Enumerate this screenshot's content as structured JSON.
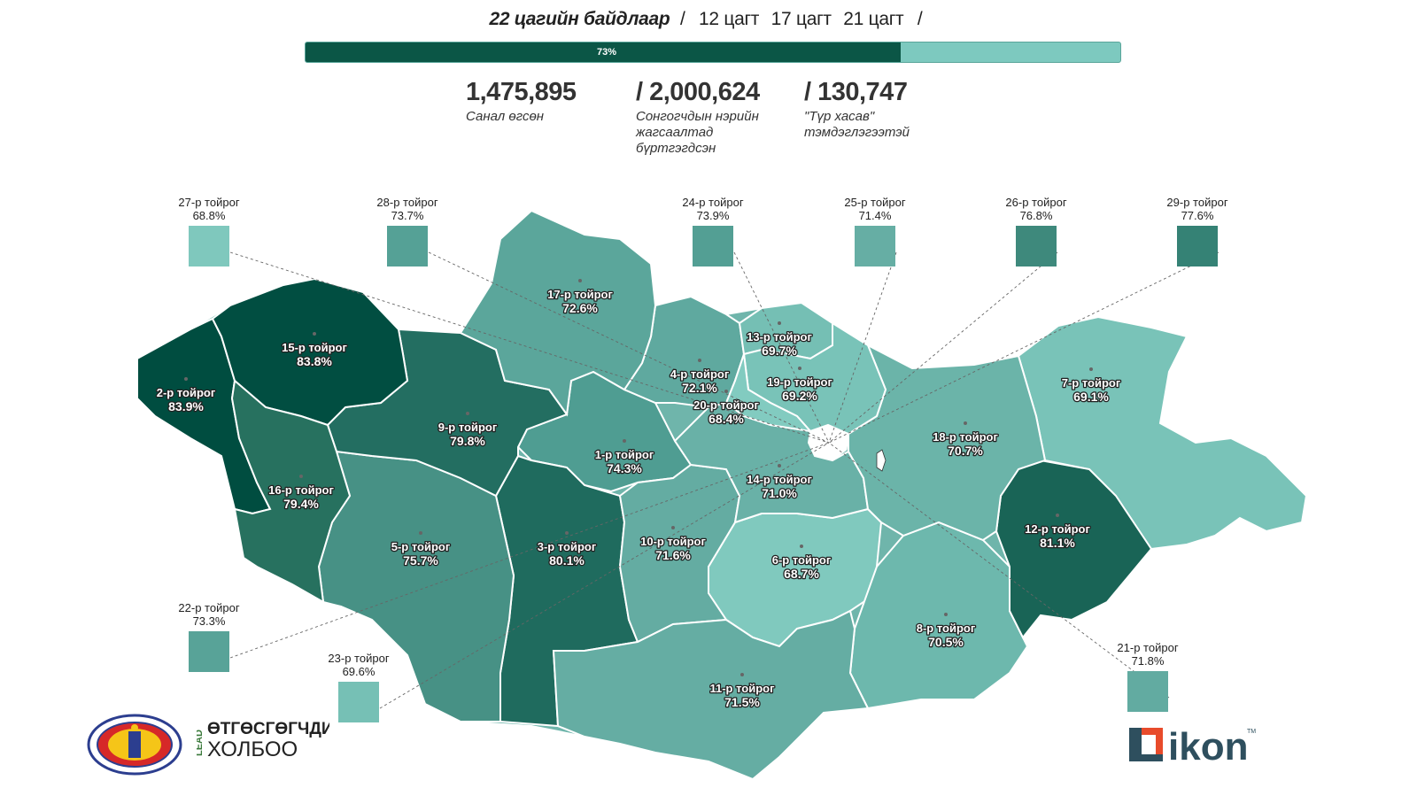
{
  "header": {
    "active_time": "22 цагийн байдлаар",
    "sep1": "/",
    "times": [
      "12 цагт",
      "17 цагт",
      "21 цагт"
    ],
    "sep2": "/"
  },
  "progress": {
    "label": "73%",
    "percent": 73
  },
  "stats": [
    {
      "value": "1,475,895",
      "label": "Санал өгсөн"
    },
    {
      "value": "/ 2,000,624",
      "label": "Сонгогчдын нэрийн жагсаалтад бүртгэгдсэн"
    },
    {
      "value": "/ 130,747",
      "label": "\"Түр хасав\" тэмдэглэгээтэй"
    }
  ],
  "districts": [
    {
      "name": "1-р тойрог",
      "value": "74.3%",
      "color": "#4f9d92"
    },
    {
      "name": "2-р тойрог",
      "value": "83.9%",
      "color": "#004d40"
    },
    {
      "name": "3-р тойрог",
      "value": "80.1%",
      "color": "#1f6b5e"
    },
    {
      "name": "4-р тойрог",
      "value": "72.1%",
      "color": "#5fa99f"
    },
    {
      "name": "5-р тойрог",
      "value": "75.7%",
      "color": "#479185"
    },
    {
      "name": "6-р тойрог",
      "value": "68.7%",
      "color": "#80c9be"
    },
    {
      "name": "7-р тойрог",
      "value": "69.1%",
      "color": "#79c3b8"
    },
    {
      "name": "8-р тойрог",
      "value": "70.5%",
      "color": "#6db8ad"
    },
    {
      "name": "9-р тойрог",
      "value": "79.8%",
      "color": "#236e61"
    },
    {
      "name": "10-р тойрог",
      "value": "71.6%",
      "color": "#64aca2"
    },
    {
      "name": "11-р тойрог",
      "value": "71.5%",
      "color": "#65ada3"
    },
    {
      "name": "12-р тойрог",
      "value": "81.1%",
      "color": "#196456"
    },
    {
      "name": "13-р тойрог",
      "value": "69.7%",
      "color": "#75bfb4"
    },
    {
      "name": "14-р тойрог",
      "value": "71.0%",
      "color": "#69b1a7"
    },
    {
      "name": "15-р тойрог",
      "value": "83.8%",
      "color": "#014e41"
    },
    {
      "name": "16-р тойрог",
      "value": "79.4%",
      "color": "#27715f"
    },
    {
      "name": "17-р тойрог",
      "value": "72.6%",
      "color": "#5ba69b"
    },
    {
      "name": "18-р тойрог",
      "value": "70.7%",
      "color": "#6bb4a9"
    },
    {
      "name": "19-р тойрог",
      "value": "69.2%",
      "color": "#79c3b8"
    },
    {
      "name": "20-р тойрог",
      "value": "68.4%",
      "color": "#82cbc0"
    }
  ],
  "callouts": [
    {
      "name": "27-р тойрог",
      "value": "68.8%",
      "color": "#7fc8bd"
    },
    {
      "name": "28-р тойрог",
      "value": "73.7%",
      "color": "#55a196"
    },
    {
      "name": "24-р тойрог",
      "value": "73.9%",
      "color": "#539f94"
    },
    {
      "name": "25-р тойрог",
      "value": "71.4%",
      "color": "#66aea4"
    },
    {
      "name": "26-р тойрог",
      "value": "76.8%",
      "color": "#3e897c"
    },
    {
      "name": "29-р тойрог",
      "value": "77.6%",
      "color": "#358275"
    },
    {
      "name": "22-р тойрог",
      "value": "73.3%",
      "color": "#58a398"
    },
    {
      "name": "23-р тойрог",
      "value": "69.6%",
      "color": "#76c0b5"
    },
    {
      "name": "21-р тойрог",
      "value": "71.8%",
      "color": "#62aba1"
    }
  ],
  "logos": {
    "election_commission": "СОНГУУЛИЙН ЕРӨНХИЙ ХОРОО OFFICIAL ELECTION COMMISSION OF MONGOLIA",
    "lead_small": "LEAD",
    "lead_line1": "ӨТГӨСГӨГЧДИЙН",
    "lead_line2": "ХОЛБОО",
    "ikon": "ikon",
    "ikon_tm": "TM"
  }
}
